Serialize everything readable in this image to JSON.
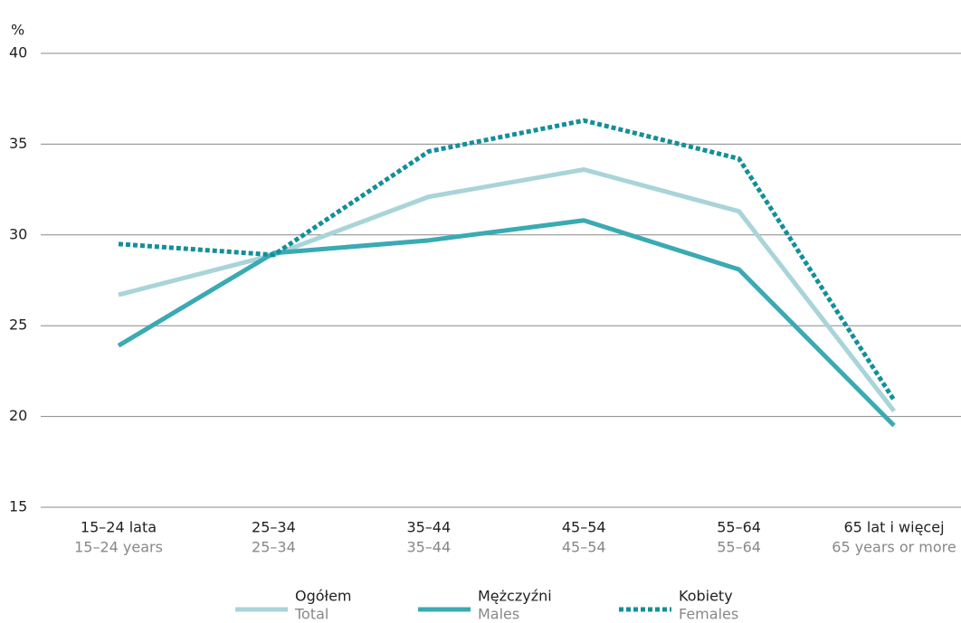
{
  "chart_data": {
    "type": "line",
    "y_label": "%",
    "categories": [
      "15–24 lata",
      "25–34",
      "35–44",
      "45–54",
      "55–64",
      "65 lat i więcej"
    ],
    "categories_en": [
      "15–24 years",
      "25–34",
      "35–44",
      "45–54",
      "55–64",
      "65 years or more"
    ],
    "series": [
      {
        "name": "Ogółem",
        "name_en": "Total",
        "color": "#a9d4d9",
        "dashed": false,
        "values": [
          26.7,
          28.9,
          32.1,
          33.6,
          31.3,
          20.3
        ]
      },
      {
        "name": "Mężczyźni",
        "name_en": "Males",
        "color": "#3aaab3",
        "dashed": false,
        "values": [
          23.9,
          29.0,
          29.7,
          30.8,
          28.1,
          19.5
        ]
      },
      {
        "name": "Kobiety",
        "name_en": "Females",
        "color": "#138f99",
        "dashed": true,
        "values": [
          29.5,
          28.9,
          34.6,
          36.3,
          34.2,
          20.9
        ]
      }
    ],
    "ylim": [
      15,
      40
    ],
    "yticks": [
      15,
      20,
      25,
      30,
      35,
      40
    ],
    "grid": true,
    "legend": "bottom"
  }
}
